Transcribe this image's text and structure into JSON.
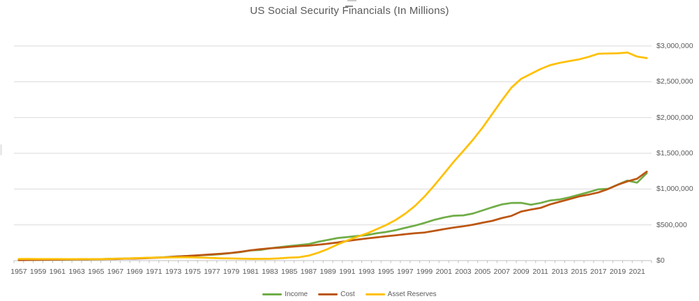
{
  "chart": {
    "title": "US Social Security Financials (In Millions)",
    "colors": {
      "title_text": "#595959",
      "axis_text": "#595959",
      "gridline": "#d9d9d9",
      "axis_line": "#bfbfbf",
      "income": "#70AD47",
      "cost": "#BC5612",
      "asset_reserves": "#FFC000"
    }
  },
  "chart_data": {
    "type": "line",
    "title": "US Social Security Financials (In Millions)",
    "xlabel": "",
    "ylabel": "",
    "ylim": [
      0,
      3000000
    ],
    "y_tick_step": 500000,
    "grid": "horizontal",
    "legend_position": "bottom",
    "y_axis_side": "right",
    "x": [
      1957,
      1958,
      1959,
      1960,
      1961,
      1962,
      1963,
      1964,
      1965,
      1966,
      1967,
      1968,
      1969,
      1970,
      1971,
      1972,
      1973,
      1974,
      1975,
      1976,
      1977,
      1978,
      1979,
      1980,
      1981,
      1982,
      1983,
      1984,
      1985,
      1986,
      1987,
      1988,
      1989,
      1990,
      1991,
      1992,
      1993,
      1994,
      1995,
      1996,
      1997,
      1998,
      1999,
      2000,
      2001,
      2002,
      2003,
      2004,
      2005,
      2006,
      2007,
      2008,
      2009,
      2010,
      2011,
      2012,
      2013,
      2014,
      2015,
      2016,
      2017,
      2018,
      2019,
      2020,
      2021,
      2022
    ],
    "x_tick_labels": [
      "1957",
      "1959",
      "1961",
      "1963",
      "1965",
      "1967",
      "1969",
      "1971",
      "1973",
      "1975",
      "1977",
      "1979",
      "1981",
      "1983",
      "1985",
      "1987",
      "1989",
      "1991",
      "1993",
      "1995",
      "1997",
      "1999",
      "2001",
      "2003",
      "2005",
      "2007",
      "2009",
      "2011",
      "2013",
      "2015",
      "2017",
      "2019",
      "2021"
    ],
    "y_tick_labels": [
      "$0",
      "$500,000",
      "$1,000,000",
      "$1,500,000",
      "$2,000,000",
      "$2,500,000",
      "$3,000,000"
    ],
    "series": [
      {
        "name": "Income",
        "color": "#70AD47",
        "values": [
          8112,
          9108,
          9516,
          12445,
          12937,
          13699,
          16227,
          17476,
          17857,
          23381,
          26413,
          28493,
          33345,
          36336,
          40908,
          45622,
          54787,
          62066,
          67640,
          75034,
          81982,
          91903,
          105864,
          119712,
          142438,
          147913,
          171266,
          186637,
          203540,
          216833,
          231039,
          263469,
          289448,
          315443,
          329676,
          342591,
          355578,
          381111,
          399497,
          424451,
          457668,
          489204,
          526582,
          568433,
          602003,
          627085,
          631886,
          657718,
          701753,
          744873,
          784889,
          805304,
          807500,
          781128,
          805057,
          840190,
          855021,
          884277,
          920157,
          957453,
          996643,
          1003361,
          1061791,
          1118073,
          1088812,
          1222103
        ]
      },
      {
        "name": "Cost",
        "color": "#BC5612",
        "values": [
          7604,
          8907,
          10798,
          11798,
          13388,
          15155,
          16217,
          17020,
          19187,
          20913,
          22471,
          26015,
          27892,
          33108,
          38542,
          43281,
          53148,
          60593,
          69184,
          78242,
          87345,
          96018,
          107320,
          123550,
          144352,
          160111,
          171177,
          180429,
          190628,
          201522,
          209093,
          222514,
          236242,
          253135,
          274205,
          291865,
          308766,
          323011,
          339815,
          353569,
          369108,
          382255,
          392908,
          415121,
          438916,
          461653,
          479086,
          501643,
          529938,
          555421,
          594501,
          625143,
          685801,
          712526,
          736083,
          785781,
          822927,
          859230,
          897113,
          922275,
          952490,
          1000172,
          1059297,
          1107238,
          1144558,
          1243681
        ]
      },
      {
        "name": "Asset Reserves",
        "color": "#FFC000",
        "values": [
          22974,
          23243,
          21966,
          22613,
          22162,
          20705,
          20715,
          21172,
          19841,
          22308,
          26250,
          28729,
          34182,
          38068,
          40434,
          42775,
          44414,
          45886,
          44342,
          41133,
          35861,
          31746,
          30291,
          26453,
          24539,
          24778,
          24867,
          31075,
          42163,
          46861,
          68807,
          109762,
          162968,
          225277,
          280747,
          331473,
          378285,
          436385,
          496068,
          566950,
          655510,
          762457,
          896134,
          1049445,
          1212533,
          1378012,
          1530764,
          1686842,
          1858660,
          2048112,
          2238457,
          2418658,
          2540348,
          2609020,
          2677931,
          2732334,
          2764431,
          2789476,
          2812576,
          2847687,
          2891814,
          2894982,
          2897405,
          2908286,
          2852030,
          2830400
        ]
      }
    ]
  }
}
